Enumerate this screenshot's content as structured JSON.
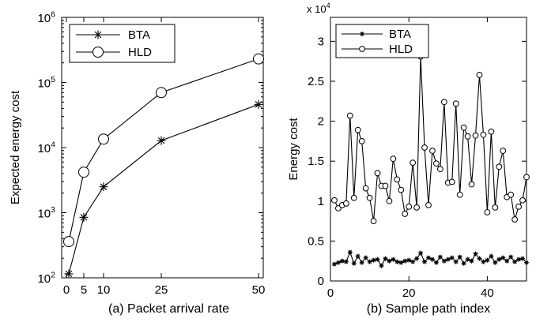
{
  "chart_data": [
    {
      "type": "line",
      "title": "",
      "caption": "(a) Packet arrival rate",
      "xlabel": "",
      "ylabel": "Expected energy cost",
      "yscale": "log",
      "xlim": [
        0,
        50
      ],
      "ylim": [
        100,
        1000000
      ],
      "xticks": [
        0,
        5,
        10,
        25,
        50
      ],
      "xtick_labels": [
        "0",
        "5",
        "10",
        "25",
        "50"
      ],
      "yticks": [
        100,
        1000,
        10000,
        100000,
        1000000
      ],
      "ytick_labels": [
        {
          "base": "10",
          "exp": "2"
        },
        {
          "base": "10",
          "exp": "3"
        },
        {
          "base": "10",
          "exp": "4"
        },
        {
          "base": "10",
          "exp": "5"
        },
        {
          "base": "10",
          "exp": "6"
        }
      ],
      "x_axis": "categorical-positions",
      "x": [
        1,
        5,
        10,
        25,
        50
      ],
      "legend_position": "top-left",
      "series": [
        {
          "name": "BTA",
          "marker": "star",
          "values": [
            115,
            850,
            2500,
            12800,
            46000
          ]
        },
        {
          "name": "HLD",
          "marker": "circle",
          "values": [
            360,
            4200,
            13500,
            70000,
            230000
          ]
        }
      ]
    },
    {
      "type": "line",
      "title": "",
      "caption": "(b) Sample path index",
      "xlabel": "",
      "ylabel": "Energy cost",
      "y_multiplier": {
        "base": "x 10",
        "exp": "4"
      },
      "xlim": [
        0,
        50
      ],
      "ylim": [
        0,
        3.3
      ],
      "xticks": [
        0,
        20,
        40
      ],
      "xtick_labels": [
        "0",
        "20",
        "40"
      ],
      "yticks": [
        0,
        0.5,
        1,
        1.5,
        2,
        2.5,
        3
      ],
      "ytick_labels": [
        "0",
        "0.5",
        "1",
        "1.5",
        "2",
        "2.5",
        "3"
      ],
      "legend_position": "top-left",
      "x": [
        1,
        2,
        3,
        4,
        5,
        6,
        7,
        8,
        9,
        10,
        11,
        12,
        13,
        14,
        15,
        16,
        17,
        18,
        19,
        20,
        21,
        22,
        23,
        24,
        25,
        26,
        27,
        28,
        29,
        30,
        31,
        32,
        33,
        34,
        35,
        36,
        37,
        38,
        39,
        40,
        41,
        42,
        43,
        44,
        45,
        46,
        47,
        48,
        49,
        50
      ],
      "series": [
        {
          "name": "BTA",
          "marker": "star",
          "values": [
            0.21,
            0.23,
            0.25,
            0.24,
            0.36,
            0.22,
            0.31,
            0.23,
            0.29,
            0.24,
            0.26,
            0.27,
            0.19,
            0.28,
            0.25,
            0.27,
            0.24,
            0.23,
            0.25,
            0.26,
            0.24,
            0.28,
            0.35,
            0.24,
            0.29,
            0.27,
            0.23,
            0.3,
            0.25,
            0.27,
            0.29,
            0.24,
            0.3,
            0.22,
            0.27,
            0.25,
            0.34,
            0.28,
            0.24,
            0.26,
            0.31,
            0.23,
            0.27,
            0.29,
            0.25,
            0.3,
            0.24,
            0.27,
            0.28,
            0.23
          ]
        },
        {
          "name": "HLD",
          "marker": "circle",
          "values": [
            1.01,
            0.91,
            0.95,
            0.97,
            2.07,
            1.04,
            1.89,
            1.75,
            1.16,
            1.04,
            0.75,
            1.35,
            1.19,
            1.19,
            1.0,
            1.53,
            1.27,
            1.14,
            0.84,
            0.93,
            1.48,
            0.92,
            2.81,
            1.67,
            0.95,
            1.63,
            1.47,
            1.4,
            2.24,
            1.23,
            1.24,
            2.22,
            1.08,
            1.92,
            1.81,
            1.21,
            1.82,
            2.58,
            1.83,
            0.86,
            1.87,
            0.92,
            1.43,
            1.63,
            1.05,
            1.08,
            0.77,
            0.93,
            1.01,
            1.3
          ]
        }
      ]
    }
  ]
}
